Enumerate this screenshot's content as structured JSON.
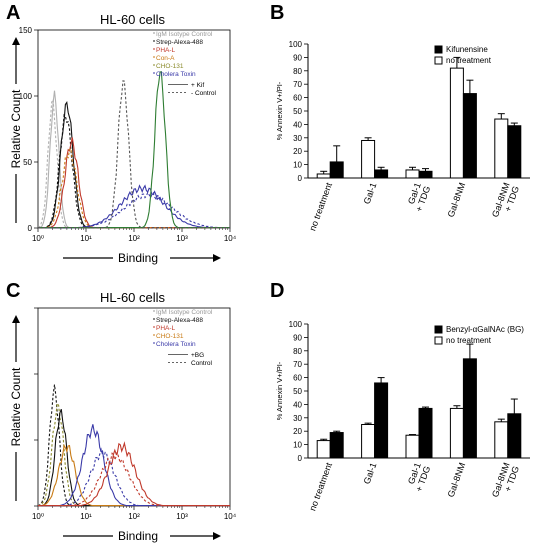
{
  "panels": [
    {
      "letter": "A",
      "title": "HL-60 cells",
      "chart_data": {
        "type": "line",
        "xlabel": "Binding",
        "ylabel": "Relative Count",
        "x_scale": "log",
        "xlim": [
          1,
          10000
        ],
        "ylim": [
          0,
          150
        ],
        "x_ticks": [
          "10⁰",
          "10¹",
          "10²",
          "10³",
          "10⁴"
        ],
        "y_ticks": [
          "0",
          "50",
          "100",
          "150"
        ],
        "legend_position": "top-right",
        "legend": [
          {
            "label": "IgM Isotype Control",
            "color": "#9a9a9a"
          },
          {
            "label": "Strep-Alexa-488",
            "color": "#111111"
          },
          {
            "label": "PHA-L",
            "color": "#c0392b"
          },
          {
            "label": "Con-A",
            "color": "#c87a14"
          },
          {
            "label": "CHO-131",
            "color": "#8a8a2a"
          },
          {
            "label": "Cholera Toxin",
            "color": "#3a3aa8"
          }
        ],
        "line_style_legend": [
          {
            "label": "+ Kif",
            "style": "solid"
          },
          {
            "label": "- Control",
            "style": "dashed"
          }
        ],
        "series": [
          {
            "color": "#b0b0b0",
            "style": "solid",
            "peak_x": 2.2,
            "peak_y": 100,
            "width": 0.09
          },
          {
            "color": "#b0b0b0",
            "style": "dashed",
            "peak_x": 2.0,
            "peak_y": 95,
            "width": 0.09
          },
          {
            "color": "#111111",
            "style": "solid",
            "peak_x": 4.0,
            "peak_y": 93,
            "width": 0.13
          },
          {
            "color": "#111111",
            "style": "dashed",
            "peak_x": 3.8,
            "peak_y": 85,
            "width": 0.13
          },
          {
            "color": "#c0392b",
            "style": "solid",
            "peak_x": 5.0,
            "peak_y": 65,
            "width": 0.14
          },
          {
            "color": "#c87a14",
            "style": "dashed",
            "peak_x": 4.5,
            "peak_y": 58,
            "width": 0.15
          },
          {
            "color": "#3a3aa8",
            "style": "solid",
            "peak_x": 150,
            "peak_y": 30,
            "width": 0.45
          },
          {
            "color": "#3a3aa8",
            "style": "dashed",
            "peak_x": 200,
            "peak_y": 25,
            "width": 0.5
          },
          {
            "color": "#2e7d32",
            "style": "solid",
            "peak_x": 350,
            "peak_y": 118,
            "width": 0.11
          },
          {
            "color": "#555555",
            "style": "dashed",
            "peak_x": 60,
            "peak_y": 110,
            "width": 0.11
          }
        ]
      }
    },
    {
      "letter": "B",
      "chart_data": {
        "type": "bar",
        "ylabel": "% Annexin V+/PI-",
        "ylim": [
          0,
          100
        ],
        "y_ticks": [
          "0",
          "10",
          "20",
          "30",
          "40",
          "50",
          "60",
          "70",
          "80",
          "90",
          "100"
        ],
        "categories": [
          "no treatment",
          "Gal-1",
          "Gal-1\n+ TDG",
          "Gal-8NM",
          "Gal-8NM\n+ TDG"
        ],
        "legend_position": "top-right",
        "series": [
          {
            "name": "no treatment",
            "color": "#ffffff",
            "values": [
              3,
              28,
              6,
              82,
              44
            ],
            "errors": [
              2,
              2,
              2,
              8,
              4
            ]
          },
          {
            "name": "Kifunensine",
            "color": "#000000",
            "values": [
              12,
              6,
              5,
              63,
              39
            ],
            "errors": [
              12,
              2,
              2,
              10,
              2
            ]
          }
        ],
        "legend_order": [
          "Kifunensine",
          "no treatment"
        ]
      }
    },
    {
      "letter": "C",
      "title": "HL-60 cells",
      "chart_data": {
        "type": "line",
        "xlabel": "Binding",
        "ylabel": "Relative Count",
        "x_scale": "log",
        "xlim": [
          1,
          10000
        ],
        "ylim": [
          0,
          150
        ],
        "x_ticks": [
          "10⁰",
          "10¹",
          "10²",
          "10³",
          "10⁴"
        ],
        "legend_position": "top-right",
        "legend": [
          {
            "label": "IgM Isotype Control",
            "color": "#9a9a9a"
          },
          {
            "label": "Strep-Alexa-488",
            "color": "#111111"
          },
          {
            "label": "PHA-L",
            "color": "#c0392b"
          },
          {
            "label": "CHO-131",
            "color": "#c87a14"
          },
          {
            "label": "Cholera Toxin",
            "color": "#3a3aa8"
          }
        ],
        "line_style_legend": [
          {
            "label": "+BG",
            "style": "solid"
          },
          {
            "label": "Control",
            "style": "dashed"
          }
        ],
        "series": [
          {
            "color": "#111111",
            "style": "dashed",
            "peak_x": 2.2,
            "peak_y": 88,
            "width": 0.1
          },
          {
            "color": "#8a8a2a",
            "style": "dashed",
            "peak_x": 2.6,
            "peak_y": 75,
            "width": 0.12
          },
          {
            "color": "#111111",
            "style": "solid",
            "peak_x": 3.0,
            "peak_y": 70,
            "width": 0.12
          },
          {
            "color": "#c87a14",
            "style": "solid",
            "peak_x": 4.0,
            "peak_y": 45,
            "width": 0.17
          },
          {
            "color": "#3a3aa8",
            "style": "solid",
            "peak_x": 14,
            "peak_y": 58,
            "width": 0.22
          },
          {
            "color": "#3a3aa8",
            "style": "dashed",
            "peak_x": 22,
            "peak_y": 40,
            "width": 0.25
          },
          {
            "color": "#c0392b",
            "style": "solid",
            "peak_x": 55,
            "peak_y": 45,
            "width": 0.28
          },
          {
            "color": "#c0392b",
            "style": "dashed",
            "peak_x": 40,
            "peak_y": 38,
            "width": 0.3
          }
        ]
      }
    },
    {
      "letter": "D",
      "chart_data": {
        "type": "bar",
        "ylabel": "% Annexin V+/PI-",
        "ylim": [
          0,
          100
        ],
        "y_ticks": [
          "0",
          "10",
          "20",
          "30",
          "40",
          "50",
          "60",
          "70",
          "80",
          "90",
          "100"
        ],
        "categories": [
          "no treatment",
          "Gal-1",
          "Gal-1\n+ TDG",
          "Gal-8NM",
          "Gal-8NM\n+ TDG"
        ],
        "legend_position": "top-right",
        "series": [
          {
            "name": "no treatment",
            "color": "#ffffff",
            "values": [
              13,
              25,
              17,
              37,
              27
            ],
            "errors": [
              1,
              1,
              0.5,
              2,
              2
            ]
          },
          {
            "name": "Benzyl-αGalNAc (BG)",
            "color": "#000000",
            "values": [
              19,
              56,
              37,
              74,
              33
            ],
            "errors": [
              1,
              4,
              1,
              11,
              11
            ]
          }
        ],
        "legend_order": [
          "Benzyl-αGalNAc (BG)",
          "no treatment"
        ]
      }
    }
  ]
}
